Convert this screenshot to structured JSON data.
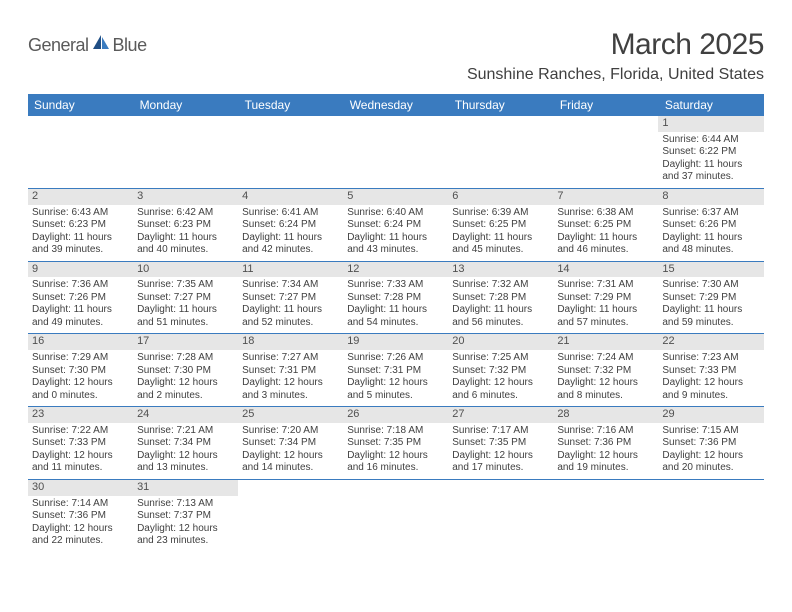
{
  "brand": {
    "name1": "General",
    "name2": "Blue"
  },
  "title": "March 2025",
  "location": "Sunshine Ranches, Florida, United States",
  "colors": {
    "header_bg": "#3a7bbf",
    "header_text": "#ffffff",
    "daynum_bg": "#e6e6e6",
    "text": "#404040",
    "rule": "#3a7bbf",
    "page_bg": "#ffffff"
  },
  "typography": {
    "title_fontsize": 30,
    "location_fontsize": 16,
    "weekday_fontsize": 12,
    "cell_fontsize": 10
  },
  "weekdays": [
    "Sunday",
    "Monday",
    "Tuesday",
    "Wednesday",
    "Thursday",
    "Friday",
    "Saturday"
  ],
  "weeks": [
    [
      null,
      null,
      null,
      null,
      null,
      null,
      {
        "d": "1",
        "sr": "6:44 AM",
        "ss": "6:22 PM",
        "dl": "11 hours and 37 minutes."
      }
    ],
    [
      {
        "d": "2",
        "sr": "6:43 AM",
        "ss": "6:23 PM",
        "dl": "11 hours and 39 minutes."
      },
      {
        "d": "3",
        "sr": "6:42 AM",
        "ss": "6:23 PM",
        "dl": "11 hours and 40 minutes."
      },
      {
        "d": "4",
        "sr": "6:41 AM",
        "ss": "6:24 PM",
        "dl": "11 hours and 42 minutes."
      },
      {
        "d": "5",
        "sr": "6:40 AM",
        "ss": "6:24 PM",
        "dl": "11 hours and 43 minutes."
      },
      {
        "d": "6",
        "sr": "6:39 AM",
        "ss": "6:25 PM",
        "dl": "11 hours and 45 minutes."
      },
      {
        "d": "7",
        "sr": "6:38 AM",
        "ss": "6:25 PM",
        "dl": "11 hours and 46 minutes."
      },
      {
        "d": "8",
        "sr": "6:37 AM",
        "ss": "6:26 PM",
        "dl": "11 hours and 48 minutes."
      }
    ],
    [
      {
        "d": "9",
        "sr": "7:36 AM",
        "ss": "7:26 PM",
        "dl": "11 hours and 49 minutes."
      },
      {
        "d": "10",
        "sr": "7:35 AM",
        "ss": "7:27 PM",
        "dl": "11 hours and 51 minutes."
      },
      {
        "d": "11",
        "sr": "7:34 AM",
        "ss": "7:27 PM",
        "dl": "11 hours and 52 minutes."
      },
      {
        "d": "12",
        "sr": "7:33 AM",
        "ss": "7:28 PM",
        "dl": "11 hours and 54 minutes."
      },
      {
        "d": "13",
        "sr": "7:32 AM",
        "ss": "7:28 PM",
        "dl": "11 hours and 56 minutes."
      },
      {
        "d": "14",
        "sr": "7:31 AM",
        "ss": "7:29 PM",
        "dl": "11 hours and 57 minutes."
      },
      {
        "d": "15",
        "sr": "7:30 AM",
        "ss": "7:29 PM",
        "dl": "11 hours and 59 minutes."
      }
    ],
    [
      {
        "d": "16",
        "sr": "7:29 AM",
        "ss": "7:30 PM",
        "dl": "12 hours and 0 minutes."
      },
      {
        "d": "17",
        "sr": "7:28 AM",
        "ss": "7:30 PM",
        "dl": "12 hours and 2 minutes."
      },
      {
        "d": "18",
        "sr": "7:27 AM",
        "ss": "7:31 PM",
        "dl": "12 hours and 3 minutes."
      },
      {
        "d": "19",
        "sr": "7:26 AM",
        "ss": "7:31 PM",
        "dl": "12 hours and 5 minutes."
      },
      {
        "d": "20",
        "sr": "7:25 AM",
        "ss": "7:32 PM",
        "dl": "12 hours and 6 minutes."
      },
      {
        "d": "21",
        "sr": "7:24 AM",
        "ss": "7:32 PM",
        "dl": "12 hours and 8 minutes."
      },
      {
        "d": "22",
        "sr": "7:23 AM",
        "ss": "7:33 PM",
        "dl": "12 hours and 9 minutes."
      }
    ],
    [
      {
        "d": "23",
        "sr": "7:22 AM",
        "ss": "7:33 PM",
        "dl": "12 hours and 11 minutes."
      },
      {
        "d": "24",
        "sr": "7:21 AM",
        "ss": "7:34 PM",
        "dl": "12 hours and 13 minutes."
      },
      {
        "d": "25",
        "sr": "7:20 AM",
        "ss": "7:34 PM",
        "dl": "12 hours and 14 minutes."
      },
      {
        "d": "26",
        "sr": "7:18 AM",
        "ss": "7:35 PM",
        "dl": "12 hours and 16 minutes."
      },
      {
        "d": "27",
        "sr": "7:17 AM",
        "ss": "7:35 PM",
        "dl": "12 hours and 17 minutes."
      },
      {
        "d": "28",
        "sr": "7:16 AM",
        "ss": "7:36 PM",
        "dl": "12 hours and 19 minutes."
      },
      {
        "d": "29",
        "sr": "7:15 AM",
        "ss": "7:36 PM",
        "dl": "12 hours and 20 minutes."
      }
    ],
    [
      {
        "d": "30",
        "sr": "7:14 AM",
        "ss": "7:36 PM",
        "dl": "12 hours and 22 minutes."
      },
      {
        "d": "31",
        "sr": "7:13 AM",
        "ss": "7:37 PM",
        "dl": "12 hours and 23 minutes."
      },
      null,
      null,
      null,
      null,
      null
    ]
  ],
  "labels": {
    "sunrise": "Sunrise:",
    "sunset": "Sunset:",
    "daylight": "Daylight:"
  }
}
